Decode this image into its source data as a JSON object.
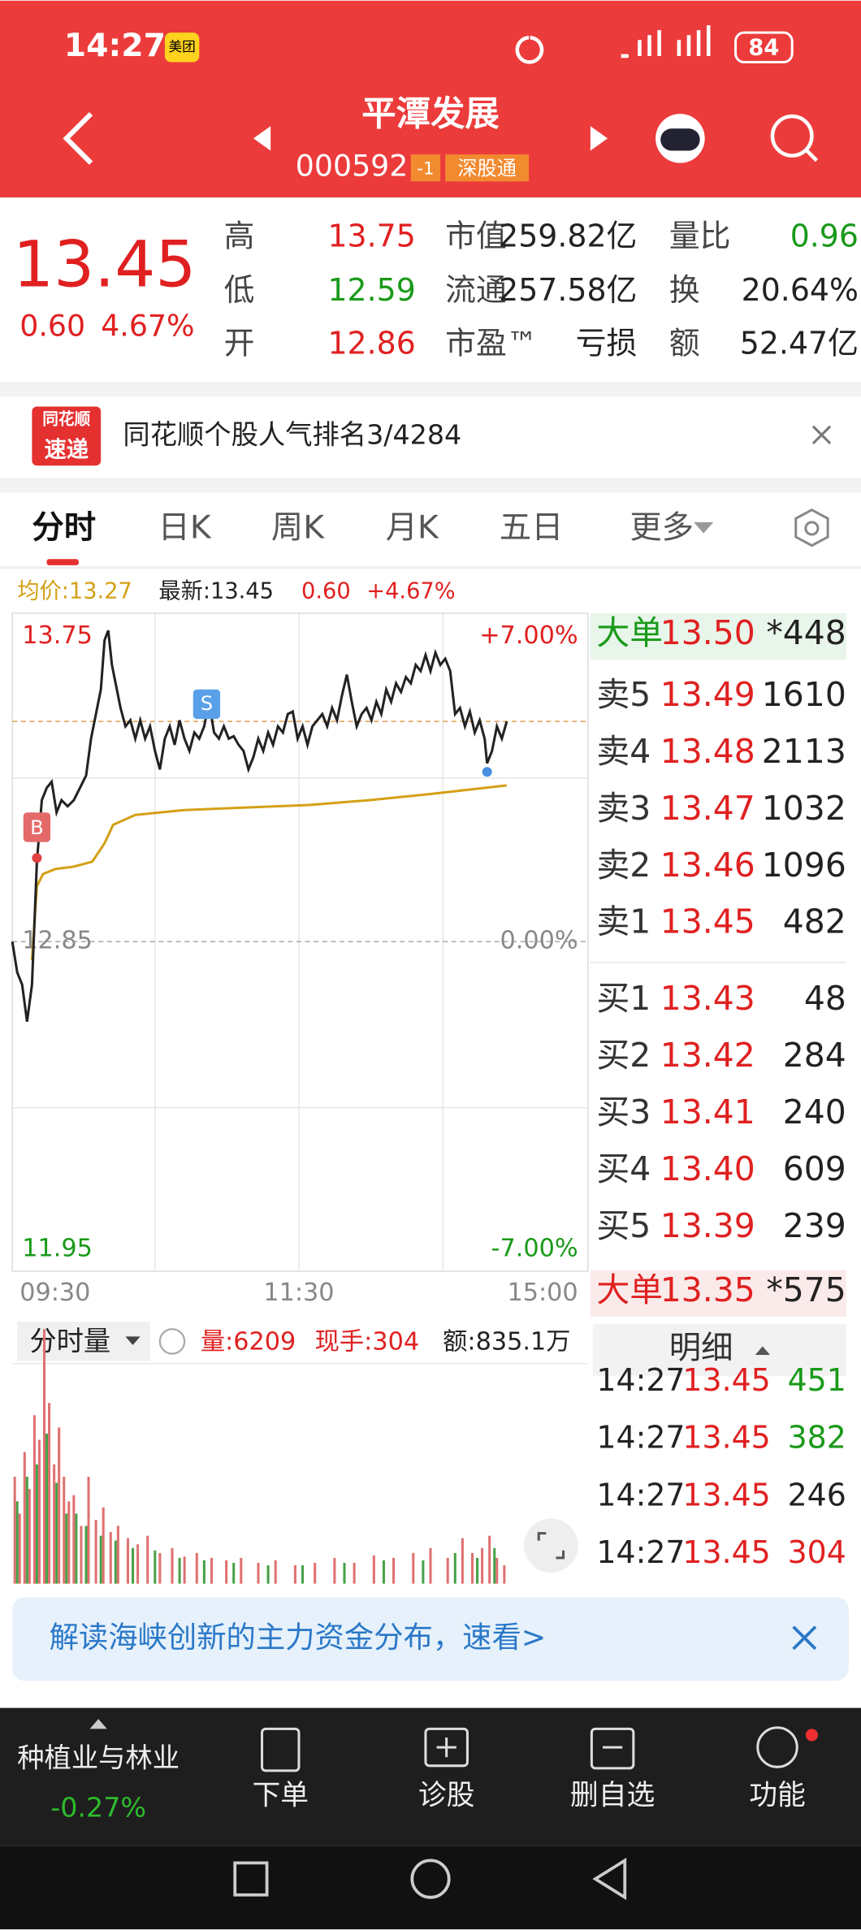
{
  "status_bar": {
    "time": "14:27",
    "badge": "美团",
    "battery": "84"
  },
  "header": {
    "title": "平潭发展",
    "code": "000592",
    "tags": [
      "-1",
      "深股通"
    ]
  },
  "quote": {
    "price": "13.45",
    "change": "0.60",
    "change_pct": "4.67%",
    "fields": [
      [
        {
          "label": "高",
          "value": "13.75"
        },
        {
          "label": "低",
          "value": "12.59"
        },
        {
          "label": "开",
          "value": "12.86"
        }
      ],
      [
        {
          "label": "市值",
          "value": "259.82亿"
        },
        {
          "label": "流通",
          "value": "257.58亿"
        },
        {
          "label": "市盈™",
          "value": "亏损"
        }
      ],
      [
        {
          "label": "量比",
          "value": "0.96"
        },
        {
          "label": "换",
          "value": "20.64%"
        },
        {
          "label": "额",
          "value": "52.47亿"
        }
      ]
    ]
  },
  "banner": {
    "logo_top": "同花顺",
    "logo_bottom": "速递",
    "text": "同花顺个股人气排名3/4284"
  },
  "tabs": [
    "分时",
    "日K",
    "周K",
    "月K",
    "五日",
    "更多"
  ],
  "chart": {
    "avg_price": "均价:13.27",
    "latest": "最新:13.45",
    "change": "0.60",
    "change_pct": "+4.67%",
    "y_left": [
      "13.75",
      "12.85",
      "11.95"
    ],
    "y_right": [
      "+7.00%",
      "0.00%",
      "-7.00%"
    ],
    "x": [
      "09:30",
      "11:30",
      "15:00"
    ],
    "markers": [
      "B",
      "S"
    ]
  },
  "order_book": {
    "big_sell": {
      "label": "大单",
      "price": "13.50",
      "volume": "*448"
    },
    "asks": [
      {
        "label": "卖5",
        "price": "13.49",
        "volume": "1610"
      },
      {
        "label": "卖4",
        "price": "13.48",
        "volume": "2113"
      },
      {
        "label": "卖3",
        "price": "13.47",
        "volume": "1032"
      },
      {
        "label": "卖2",
        "price": "13.46",
        "volume": "1096"
      },
      {
        "label": "卖1",
        "price": "13.45",
        "volume": "482"
      }
    ],
    "bids": [
      {
        "label": "买1",
        "price": "13.43",
        "volume": "48"
      },
      {
        "label": "买2",
        "price": "13.42",
        "volume": "284"
      },
      {
        "label": "买3",
        "price": "13.41",
        "volume": "240"
      },
      {
        "label": "买4",
        "price": "13.40",
        "volume": "609"
      },
      {
        "label": "买5",
        "price": "13.39",
        "volume": "239"
      }
    ],
    "big_buy": {
      "label": "大单",
      "price": "13.35",
      "volume": "*575"
    }
  },
  "volume": {
    "selector": "分时量",
    "volume": "量:6209",
    "current": "现手:304",
    "amount": "额:835.1万"
  },
  "detail": {
    "title": "明细",
    "trades": [
      {
        "time": "14:27",
        "price": "13.45",
        "volume": "451"
      },
      {
        "time": "14:27",
        "price": "13.45",
        "volume": "382"
      },
      {
        "time": "14:27",
        "price": "13.45",
        "volume": "246"
      },
      {
        "time": "14:27",
        "price": "13.45",
        "volume": "304"
      }
    ]
  },
  "promo": {
    "text": "解读海峡创新的主力资金分布，速看>"
  },
  "toolbar": {
    "sector": "种植业与林业",
    "sector_change": "-0.27%",
    "buttons": [
      "下单",
      "诊股",
      "删自选",
      "功能"
    ]
  }
}
